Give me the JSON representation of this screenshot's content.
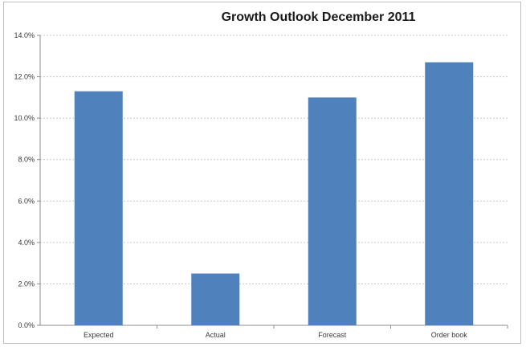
{
  "chart_data": {
    "type": "bar",
    "title": "Growth Outlook December 2011",
    "categories": [
      "Expected",
      "Actual",
      "Forecast",
      "Order book"
    ],
    "values": [
      11.3,
      2.5,
      11.0,
      12.7
    ],
    "ylim": [
      0,
      14
    ],
    "yticks": [
      "0.0%",
      "2.0%",
      "4.0%",
      "6.0%",
      "8.0%",
      "10.0%",
      "12.0%",
      "14.0%"
    ],
    "ytick_values": [
      0,
      2,
      4,
      6,
      8,
      10,
      12,
      14
    ],
    "grid": true,
    "bar_color": "#4f81bd"
  }
}
